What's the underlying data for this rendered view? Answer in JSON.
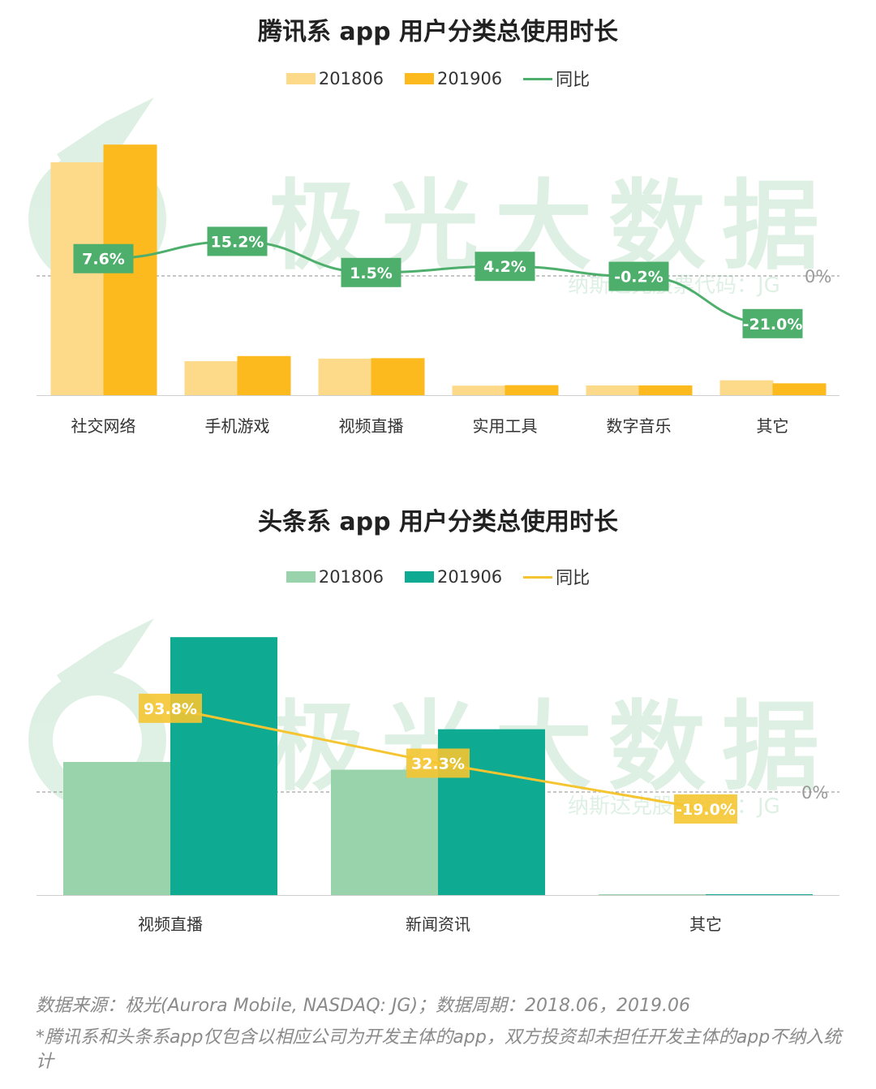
{
  "watermark": {
    "text": "极光大数据",
    "subtext": "纳斯达克股票代码：JG"
  },
  "charts": [
    {
      "title": "腾讯系 app 用户分类总使用时长",
      "legend": [
        "201806",
        "201906",
        "同比"
      ],
      "colors": {
        "s1": "#FDDA8A",
        "s2": "#FCBA1E",
        "line": "#4EAF6D",
        "label_bg": "#4EAF6D"
      },
      "zero_label": "0%"
    },
    {
      "title": "头条系 app 用户分类总使用时长",
      "legend": [
        "201806",
        "201906",
        "同比"
      ],
      "colors": {
        "s1": "#98D3AC",
        "s2": "#0EAA91",
        "line": "#F5C531",
        "label_bg": "#F5C531"
      },
      "zero_label": "0%"
    }
  ],
  "chart_data": [
    {
      "type": "bar",
      "title": "腾讯系 app 用户分类总使用时长",
      "categories": [
        "社交网络",
        "手机游戏",
        "视频直播",
        "实用工具",
        "数字音乐",
        "其它"
      ],
      "series": [
        {
          "name": "201806",
          "values": [
            100,
            14.6,
            15.7,
            4.1,
            4.2,
            6.4
          ]
        },
        {
          "name": "201906",
          "values": [
            107.6,
            16.8,
            15.9,
            4.3,
            4.2,
            5.1
          ]
        }
      ],
      "line_series": {
        "name": "同比",
        "values": [
          7.6,
          15.2,
          1.5,
          4.2,
          -0.2,
          -21.0
        ],
        "labels": [
          "7.6%",
          "15.2%",
          "1.5%",
          "4.2%",
          "-0.2%",
          "-21.0%"
        ]
      }
    },
    {
      "type": "bar",
      "title": "头条系 app 用户分类总使用时长",
      "categories": [
        "视频直播",
        "新闻资讯",
        "其它"
      ],
      "series": [
        {
          "name": "201806",
          "values": [
            100,
            94.2,
            0.4
          ]
        },
        {
          "name": "201906",
          "values": [
            193.8,
            124.6,
            0.3
          ]
        }
      ],
      "line_series": {
        "name": "同比",
        "values": [
          93.8,
          32.3,
          -19.0
        ],
        "labels": [
          "93.8%",
          "32.3%",
          "-19.0%"
        ]
      }
    }
  ],
  "source": {
    "line1": "数据来源：极光(Aurora Mobile, NASDAQ: JG)；数据周期：2018.06，2019.06",
    "note": "*腾讯系和头条系app仅包含以相应公司为开发主体的app，双方投资却未担任开发主体的app不纳入统计"
  }
}
